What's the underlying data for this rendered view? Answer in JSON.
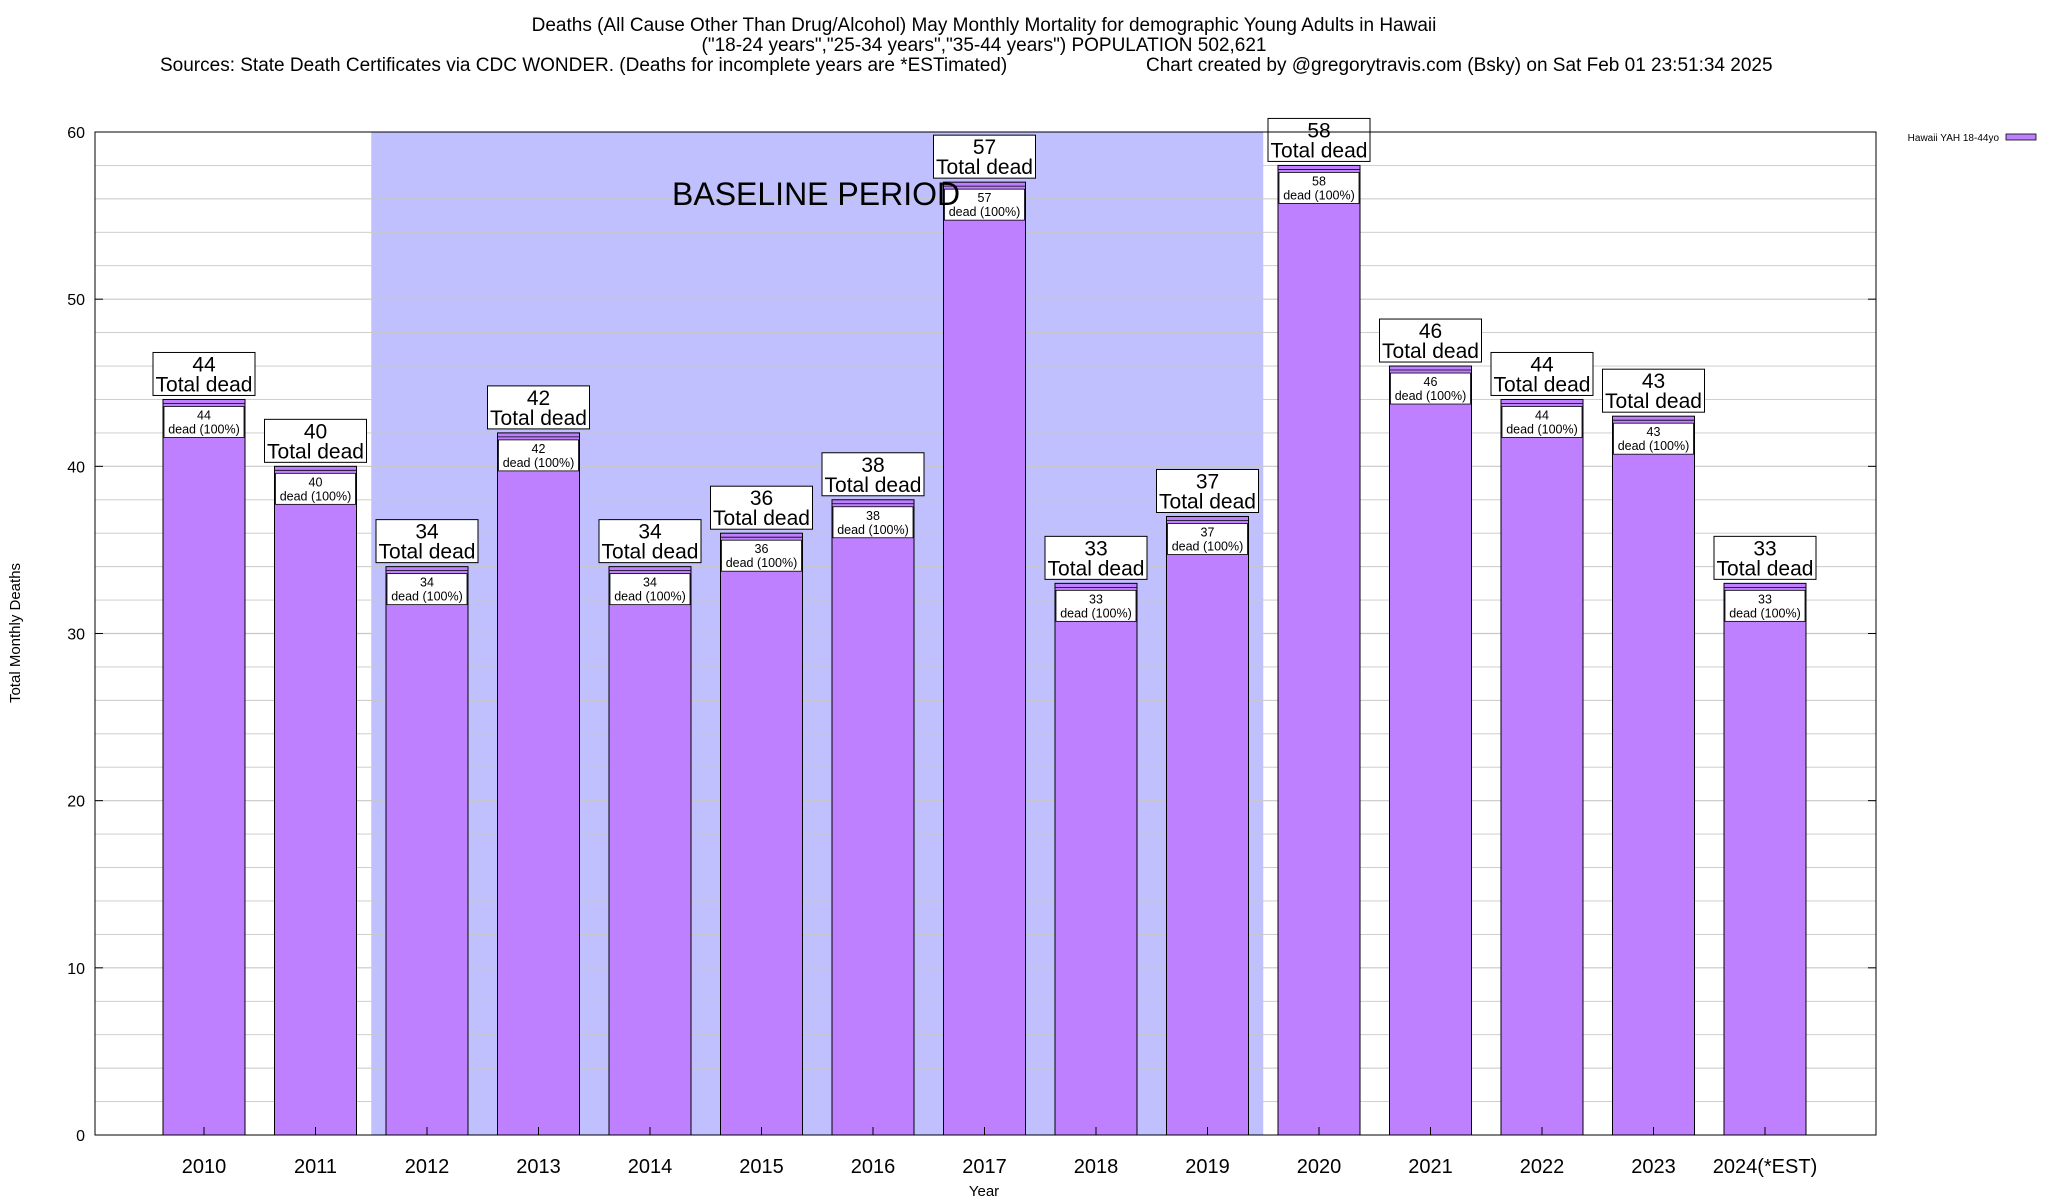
{
  "header": {
    "title_line1": "Deaths (All Cause Other Than Drug/Alcohol) May Monthly Mortality for demographic Young Adults in Hawaii",
    "title_line2": "(\"18-24 years\",\"25-34 years\",\"35-44 years\") POPULATION 502,621",
    "sources": "Sources: State Death Certificates via CDC WONDER. (Deaths for incomplete years are *ESTimated)",
    "credit": "Chart created by @gregorytravis.com (Bsky) on Sat Feb 01 23:51:34 2025"
  },
  "colors": {
    "bar_fill": "#bf80ff",
    "bar_top": "#9e5fe6",
    "baseline_band": "#c0c0ff",
    "grid": "#c8c8c8",
    "axis": "#000000"
  },
  "chart_data": {
    "type": "bar",
    "xlabel": "Year",
    "ylabel": "Total Monthly Deaths",
    "ylim": [
      0,
      60
    ],
    "yticks": [
      "0",
      "10",
      "20",
      "30",
      "40",
      "50",
      "60"
    ],
    "grid": true,
    "legend": {
      "position": "top-right",
      "entries": [
        "Hawaii YAH 18-44yo"
      ]
    },
    "categories": [
      "2010",
      "2011",
      "2012",
      "2013",
      "2014",
      "2015",
      "2016",
      "2017",
      "2018",
      "2019",
      "2020",
      "2021",
      "2022",
      "2023",
      "2024(*EST)"
    ],
    "series": [
      {
        "name": "Hawaii YAH 18-44yo",
        "values": [
          44,
          40,
          34,
          42,
          34,
          36,
          38,
          57,
          33,
          37,
          58,
          46,
          44,
          43,
          33
        ]
      }
    ],
    "value_labels": [
      "44",
      "40",
      "34",
      "42",
      "34",
      "36",
      "38",
      "57",
      "33",
      "37",
      "58",
      "46",
      "44",
      "43",
      "33"
    ],
    "total_label": "Total dead",
    "inner_label": "dead (100%)",
    "baseline": {
      "label": "BASELINE PERIOD",
      "from": "2012",
      "to": "2019"
    }
  }
}
